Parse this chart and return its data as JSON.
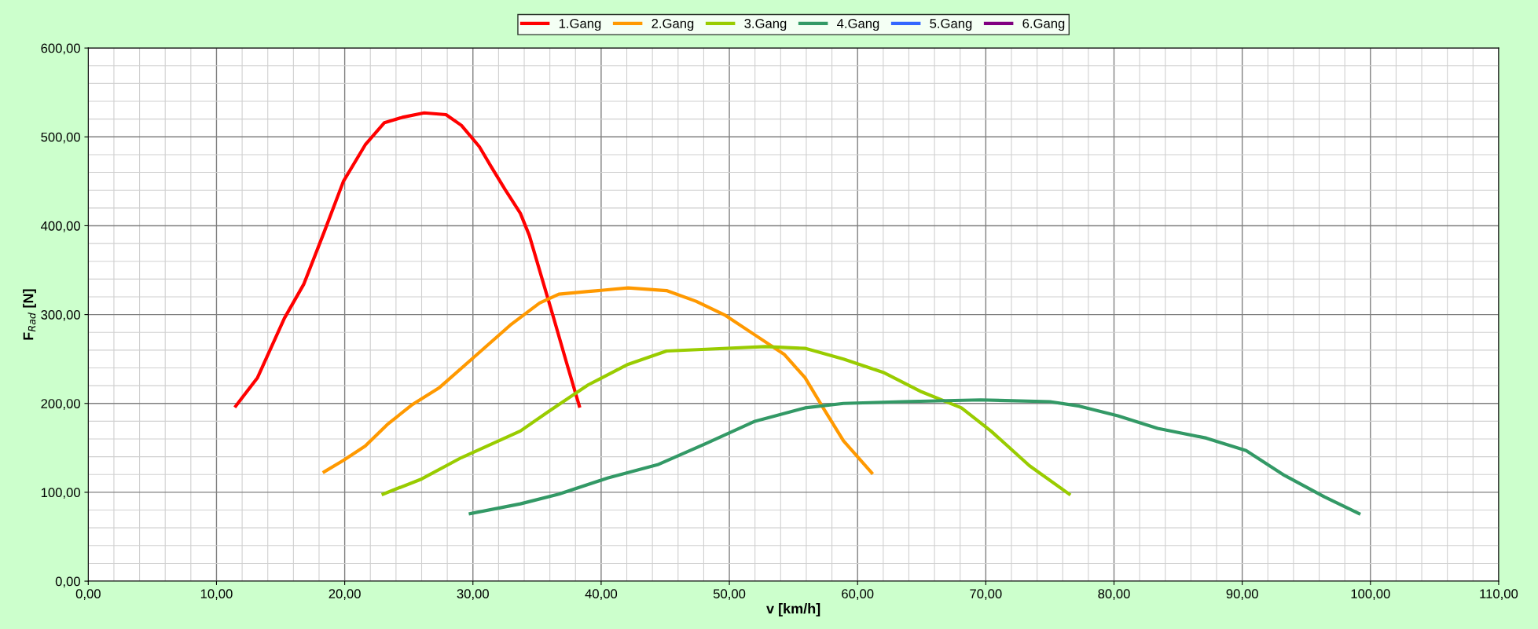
{
  "chart_data": {
    "type": "line",
    "xlabel": "v [km/h]",
    "ylabel": "F$_{Rad}$ [N]",
    "xlim": [
      0,
      110
    ],
    "ylim": [
      0,
      600
    ],
    "xticks": [
      {
        "value": 0,
        "label": "0,00"
      },
      {
        "value": 10,
        "label": "10,00"
      },
      {
        "value": 20,
        "label": "20,00"
      },
      {
        "value": 30,
        "label": "30,00"
      },
      {
        "value": 40,
        "label": "40,00"
      },
      {
        "value": 50,
        "label": "50,00"
      },
      {
        "value": 60,
        "label": "60,00"
      },
      {
        "value": 70,
        "label": "70,00"
      },
      {
        "value": 80,
        "label": "80,00"
      },
      {
        "value": 90,
        "label": "90,00"
      },
      {
        "value": 100,
        "label": "100,00"
      },
      {
        "value": 110,
        "label": "110,00"
      }
    ],
    "yticks": [
      {
        "value": 0,
        "label": "0,00"
      },
      {
        "value": 100,
        "label": "100,00"
      },
      {
        "value": 200,
        "label": "200,00"
      },
      {
        "value": 300,
        "label": "300,00"
      },
      {
        "value": 400,
        "label": "400,00"
      },
      {
        "value": 500,
        "label": "500,00"
      },
      {
        "value": 600,
        "label": "600,00"
      }
    ],
    "grid": true,
    "legend": "top",
    "marker": "none",
    "line_style": "solid",
    "series": [
      {
        "name": "1.Gang",
        "color": "#ff0000",
        "x": [
          11.5,
          13.2,
          15.3,
          16.8,
          18.4,
          19.9,
          21.6,
          23.1,
          24.5,
          26.2,
          27.9,
          29.1,
          30.5,
          31.4,
          32.5,
          33.7,
          34.4,
          35.4,
          36.3,
          37.3,
          38.3
        ],
        "values": [
          197,
          229,
          296,
          334,
          393,
          450,
          491,
          516,
          522,
          527,
          525,
          513,
          489,
          467,
          441,
          414,
          389,
          340,
          296,
          246,
          197
        ]
      },
      {
        "name": "2.Gang",
        "color": "#ff9900",
        "x": [
          18.4,
          19.9,
          21.6,
          23.3,
          25.2,
          27.4,
          30.0,
          32.9,
          35.2,
          36.7,
          39.0,
          42.1,
          45.1,
          47.4,
          49.7,
          52.0,
          54.3,
          55.9,
          57.4,
          58.9,
          61.1
        ],
        "values": [
          123,
          136,
          152,
          176,
          198,
          218,
          251,
          288,
          313,
          323,
          326,
          330,
          327,
          315,
          299,
          277,
          255,
          229,
          193,
          158,
          122
        ]
      },
      {
        "name": "3.Gang",
        "color": "#99cc00",
        "x": [
          23.0,
          26.0,
          29.1,
          31.4,
          33.7,
          35.9,
          39.0,
          42.1,
          45.1,
          48.2,
          52.8,
          55.9,
          58.9,
          62.0,
          65.0,
          68.1,
          70.4,
          73.4,
          76.5
        ],
        "values": [
          98,
          115,
          139,
          154,
          169,
          191,
          221,
          244,
          259,
          261,
          264,
          262,
          250,
          235,
          213,
          195,
          169,
          130,
          98
        ]
      },
      {
        "name": "4.Gang",
        "color": "#339966",
        "x": [
          29.8,
          33.7,
          36.7,
          40.5,
          44.4,
          48.2,
          52.0,
          55.9,
          58.9,
          63.5,
          69.6,
          75.0,
          77.3,
          80.3,
          83.4,
          87.2,
          90.3,
          93.3,
          96.4,
          99.1
        ],
        "values": [
          76,
          87,
          98,
          116,
          131,
          155,
          180,
          195,
          200,
          202,
          204,
          202,
          197,
          186,
          172,
          161,
          147,
          119,
          95,
          76
        ]
      },
      {
        "name": "5.Gang",
        "color": "#3366ff"
      },
      {
        "name": "6.Gang",
        "color": "#800080"
      }
    ]
  }
}
